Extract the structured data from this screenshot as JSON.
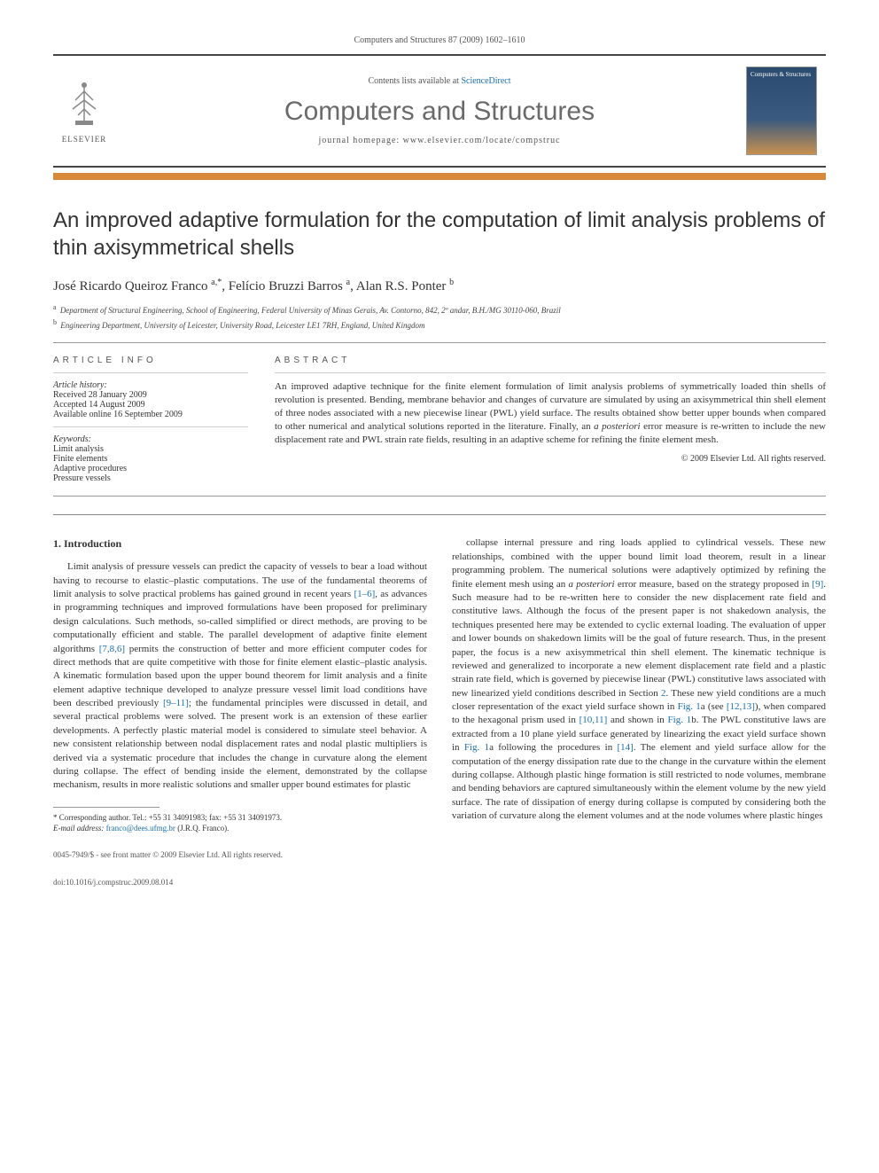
{
  "header": {
    "journal_ref": "Computers and Structures 87 (2009) 1602–1610",
    "contents_line_prefix": "Contents lists available at ",
    "contents_line_link": "ScienceDirect",
    "journal_name": "Computers and Structures",
    "homepage_label": "journal homepage: ",
    "homepage_url": "www.elsevier.com/locate/compstruc",
    "publisher_name": "ELSEVIER",
    "cover_title": "Computers & Structures"
  },
  "title": "An improved adaptive formulation for the computation of limit analysis problems of thin axisymmetrical shells",
  "authors_html": "José Ricardo Queiroz Franco <sup>a,*</sup>, Felício Bruzzi Barros <sup>a</sup>, Alan R.S. Ponter <sup>b</sup>",
  "affiliations": [
    {
      "sup": "a",
      "text": "Department of Structural Engineering, School of Engineering, Federal University of Minas Gerais, Av. Contorno, 842, 2º andar, B.H./MG 30110-060, Brazil"
    },
    {
      "sup": "b",
      "text": "Engineering Department, University of Leicester, University Road, Leicester LE1 7RH, England, United Kingdom"
    }
  ],
  "article_info": {
    "heading": "ARTICLE INFO",
    "history_label": "Article history:",
    "received": "Received 28 January 2009",
    "accepted": "Accepted 14 August 2009",
    "online": "Available online 16 September 2009",
    "keywords_label": "Keywords:",
    "keywords": [
      "Limit analysis",
      "Finite elements",
      "Adaptive procedures",
      "Pressure vessels"
    ]
  },
  "abstract": {
    "heading": "ABSTRACT",
    "text": "An improved adaptive technique for the finite element formulation of limit analysis problems of symmetrically loaded thin shells of revolution is presented. Bending, membrane behavior and changes of curvature are simulated by using an axisymmetrical thin shell element of three nodes associated with a new piecewise linear (PWL) yield surface. The results obtained show better upper bounds when compared to other numerical and analytical solutions reported in the literature. Finally, an a posteriori error measure is re-written to include the new displacement rate and PWL strain rate fields, resulting in an adaptive scheme for refining the finite element mesh.",
    "copyright": "© 2009 Elsevier Ltd. All rights reserved."
  },
  "body": {
    "section_heading": "1. Introduction",
    "col1": "Limit analysis of pressure vessels can predict the capacity of vessels to bear a load without having to recourse to elastic–plastic computations. The use of the fundamental theorems of limit analysis to solve practical problems has gained ground in recent years [1–6], as advances in programming techniques and improved formulations have been proposed for preliminary design calculations. Such methods, so-called simplified or direct methods, are proving to be computationally efficient and stable. The parallel development of adaptive finite element algorithms [7,8,6] permits the construction of better and more efficient computer codes for direct methods that are quite competitive with those for finite element elastic–plastic analysis. A kinematic formulation based upon the upper bound theorem for limit analysis and a finite element adaptive technique developed to analyze pressure vessel limit load conditions have been described previously [9–11]; the fundamental principles were discussed in detail, and several practical problems were solved. The present work is an extension of these earlier developments. A perfectly plastic material model is considered to simulate steel behavior. A new consistent relationship between nodal displacement rates and nodal plastic multipliers is derived via a systematic procedure that includes the change in curvature along the element during collapse. The effect of bending inside the element, demonstrated by the collapse mechanism, results in more realistic solutions and smaller upper bound estimates for plastic",
    "col2": "collapse internal pressure and ring loads applied to cylindrical vessels. These new relationships, combined with the upper bound limit load theorem, result in a linear programming problem. The numerical solutions were adaptively optimized by refining the finite element mesh using an a posteriori error measure, based on the strategy proposed in [9]. Such measure had to be re-written here to consider the new displacement rate field and constitutive laws. Although the focus of the present paper is not shakedown analysis, the techniques presented here may be extended to cyclic external loading. The evaluation of upper and lower bounds on shakedown limits will be the goal of future research. Thus, in the present paper, the focus is a new axisymmetrical thin shell element. The kinematic technique is reviewed and generalized to incorporate a new element displacement rate field and a plastic strain rate field, which is governed by piecewise linear (PWL) constitutive laws associated with new linearized yield conditions described in Section 2. These new yield conditions are a much closer representation of the exact yield surface shown in Fig. 1a (see [12,13]), when compared to the hexagonal prism used in [10,11] and shown in Fig. 1b. The PWL constitutive laws are extracted from a 10 plane yield surface generated by linearizing the exact yield surface shown in Fig. 1a following the procedures in [14]. The element and yield surface allow for the computation of the energy dissipation rate due to the change in the curvature within the element during collapse. Although plastic hinge formation is still restricted to node volumes, membrane and bending behaviors are captured simultaneously within the element volume by the new yield surface. The rate of dissipation of energy during collapse is computed by considering both the variation of curvature along the element volumes and at the node volumes where plastic hinges"
  },
  "footnote": {
    "corresponding": "* Corresponding author. Tel.: +55 31 34091983; fax: +55 31 34091973.",
    "email_label": "E-mail address:",
    "email": "franco@dees.ufmg.br",
    "email_suffix": "(J.R.Q. Franco)."
  },
  "footer": {
    "line1": "0045-7949/$ - see front matter © 2009 Elsevier Ltd. All rights reserved.",
    "line2": "doi:10.1016/j.compstruc.2009.08.014"
  },
  "refs": {
    "r1": "[1–6]",
    "r2": "[7,8,6]",
    "r3": "[9–11]",
    "r4": "[9]",
    "r5": "2",
    "r6": "Fig. 1",
    "r7": "[12,13]",
    "r8": "[10,11]",
    "r9": "Fig. 1",
    "r10": "Fig. 1",
    "r11": "[14]"
  },
  "colors": {
    "orange_bar": "#d78b3a",
    "link": "#1a6faf",
    "heading_gray": "#6a6a6a"
  }
}
